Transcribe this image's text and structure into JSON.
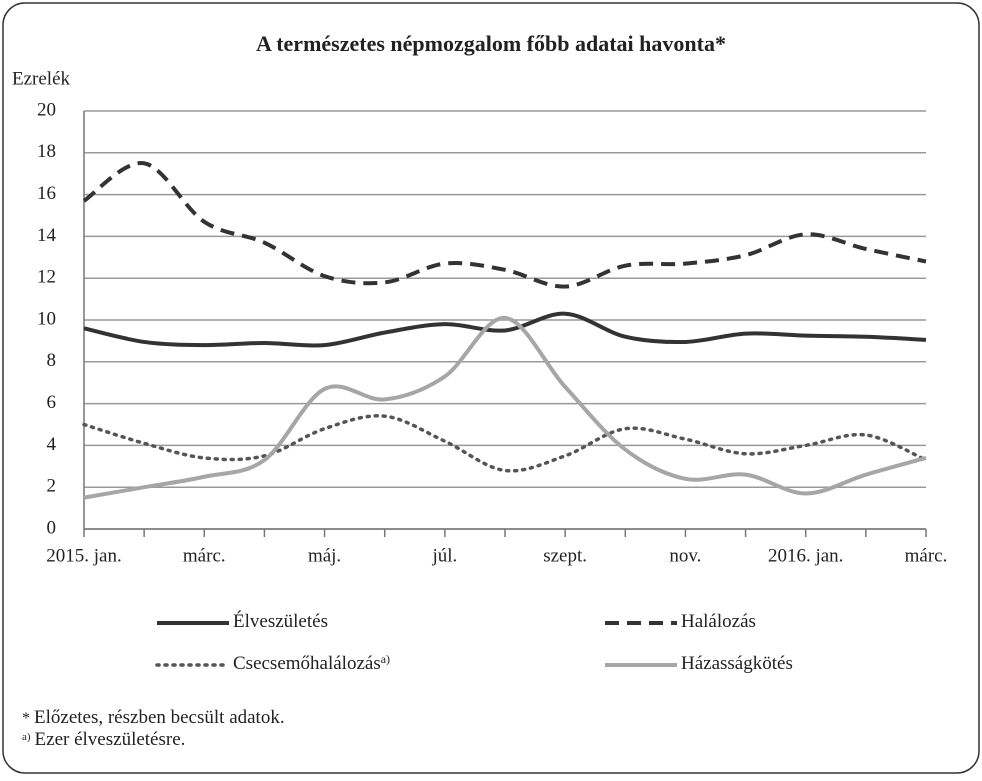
{
  "chart_data": {
    "type": "line",
    "title": "A természetes népmozgalom főbb adatai havonta*",
    "y_label": "Ezrelék",
    "categories": [
      "2015. jan.",
      null,
      "márc.",
      null,
      "máj.",
      null,
      "júl.",
      null,
      "szept.",
      null,
      "nov.",
      null,
      "2016. jan.",
      null,
      "márc."
    ],
    "ylim": [
      0,
      20
    ],
    "yticks": [
      0,
      2,
      4,
      6,
      8,
      10,
      12,
      14,
      16,
      18,
      20
    ],
    "grid": true,
    "series": [
      {
        "name": "Élveszületés",
        "color": "#333333",
        "style": "solid",
        "values": [
          9.6,
          8.95,
          8.8,
          8.9,
          8.8,
          9.4,
          9.8,
          9.5,
          10.3,
          9.2,
          8.95,
          9.35,
          9.25,
          9.2,
          9.05
        ]
      },
      {
        "name": "Halálozás",
        "color": "#333333",
        "style": "dashed",
        "values": [
          15.7,
          17.5,
          14.7,
          13.7,
          12.1,
          11.8,
          12.7,
          12.4,
          11.6,
          12.6,
          12.7,
          13.1,
          14.1,
          13.4,
          12.8
        ]
      },
      {
        "name": "Csecsemőhalálozás",
        "name_note": "a)",
        "color": "#555555",
        "style": "dotted",
        "values": [
          5.0,
          4.1,
          3.4,
          3.5,
          4.8,
          5.4,
          4.2,
          2.8,
          3.5,
          4.8,
          4.3,
          3.6,
          4.0,
          4.5,
          3.3
        ]
      },
      {
        "name": "Házasságkötés",
        "color": "#a6a6a6",
        "style": "solid",
        "values": [
          1.5,
          2.0,
          2.5,
          3.3,
          6.7,
          6.2,
          7.3,
          10.1,
          6.8,
          3.8,
          2.4,
          2.6,
          1.7,
          2.6,
          3.4
        ]
      }
    ],
    "footnotes": [
      {
        "marker": "*",
        "text": "Előzetes, részben becsült adatok."
      },
      {
        "marker": "a)",
        "text": "Ezer élveszületésre."
      }
    ]
  }
}
